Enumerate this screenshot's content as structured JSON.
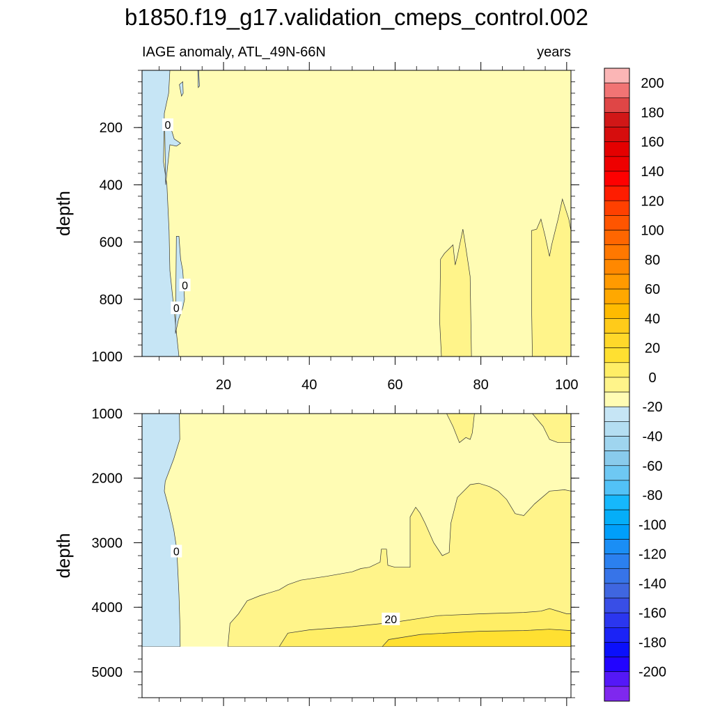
{
  "title": "b1850.f19_g17.validation_cmeps_control.002",
  "chart_data": {
    "type": "heatmap",
    "subtitle_left": "IAGE anomaly, ATL_49N-66N",
    "subtitle_right": "years",
    "xlim": [
      1,
      101
    ],
    "x_ticks": [
      20,
      40,
      60,
      80,
      100
    ],
    "panels": [
      {
        "name": "upper",
        "ylabel": "depth",
        "ylim": [
          0,
          1000
        ],
        "y_ticks": [
          200,
          400,
          600,
          800,
          1000
        ],
        "background": "#fffcb4",
        "regions": [
          {
            "fill": "#c6e5f5",
            "points": [
              [
                1,
                0
              ],
              [
                7.5,
                0
              ],
              [
                7.2,
                80
              ],
              [
                6.2,
                150
              ],
              [
                6,
                320
              ],
              [
                6.8,
                400
              ],
              [
                7.3,
                560
              ],
              [
                7.5,
                700
              ],
              [
                9.6,
                1000
              ],
              [
                1,
                1000
              ]
            ]
          },
          {
            "fill": "#c6e5f5",
            "points": [
              [
                9.7,
                50
              ],
              [
                10.5,
                40
              ],
              [
                10.6,
                80
              ],
              [
                10.2,
                90
              ]
            ]
          },
          {
            "fill": "#c6e5f5",
            "points": [
              [
                14,
                2
              ],
              [
                14.2,
                0
              ],
              [
                14.4,
                55
              ],
              [
                14.1,
                60
              ]
            ]
          },
          {
            "fill": "#c6e5f5",
            "points": [
              [
                6.3,
                200
              ],
              [
                7.5,
                190
              ],
              [
                8.5,
                240
              ],
              [
                10,
                255
              ],
              [
                9,
                265
              ],
              [
                7.5,
                260
              ],
              [
                6.5,
                400
              ]
            ]
          },
          {
            "fill": "#c6e5f5",
            "points": [
              [
                9,
                580
              ],
              [
                9.6,
                580
              ],
              [
                10,
                660
              ],
              [
                10.5,
                700
              ],
              [
                10.9,
                800
              ],
              [
                10.5,
                830
              ],
              [
                9.5,
                870
              ],
              [
                8.8,
                920
              ]
            ]
          },
          {
            "fill": "#fff48a",
            "points": [
              [
                70.8,
                1000
              ],
              [
                70.4,
                880
              ],
              [
                70.6,
                660
              ],
              [
                71.5,
                640
              ],
              [
                73.5,
                610
              ],
              [
                74,
                680
              ],
              [
                74.5,
                650
              ],
              [
                75.8,
                555
              ],
              [
                76.3,
                600
              ],
              [
                77.5,
                720
              ],
              [
                77.8,
                1000
              ]
            ]
          },
          {
            "fill": "#fff48a",
            "points": [
              [
                92,
                1000
              ],
              [
                91.8,
                800
              ],
              [
                91.8,
                560
              ],
              [
                93,
                555
              ],
              [
                94,
                520
              ],
              [
                95,
                580
              ],
              [
                96,
                650
              ],
              [
                96.5,
                610
              ],
              [
                98,
                520
              ],
              [
                99,
                450
              ],
              [
                100.5,
                520
              ],
              [
                101,
                560
              ],
              [
                101,
                1000
              ]
            ]
          }
        ],
        "contour_labels": [
          {
            "text": "0",
            "x": 7,
            "y": 190
          },
          {
            "text": "0",
            "x": 11,
            "y": 750
          },
          {
            "text": "0",
            "x": 9,
            "y": 830
          }
        ]
      },
      {
        "name": "lower",
        "ylabel": "depth",
        "ylim": [
          1000,
          5400
        ],
        "y_ticks": [
          1000,
          2000,
          3000,
          4000,
          5000
        ],
        "background": "#fffcb4",
        "missing_below": 4610,
        "regions": [
          {
            "fill": "#c6e5f5",
            "points": [
              [
                1,
                1000
              ],
              [
                9.7,
                1000
              ],
              [
                9.8,
                1400
              ],
              [
                8.4,
                1700
              ],
              [
                6.4,
                2050
              ],
              [
                6.2,
                2200
              ],
              [
                7.4,
                2500
              ],
              [
                8.4,
                2800
              ],
              [
                9.1,
                3100
              ],
              [
                9.4,
                3500
              ],
              [
                9.6,
                3800
              ],
              [
                9.8,
                4200
              ],
              [
                9.9,
                4610
              ],
              [
                1,
                4610
              ]
            ]
          },
          {
            "fill": "#fff48a",
            "points": [
              [
                69.5,
                1000
              ],
              [
                78.5,
                1000
              ],
              [
                78,
                1300
              ],
              [
                77.5,
                1400
              ],
              [
                76.5,
                1370
              ],
              [
                75,
                1450
              ],
              [
                73.5,
                1200
              ],
              [
                72,
                1000
              ]
            ]
          },
          {
            "fill": "#fff48a",
            "points": [
              [
                92,
                1000
              ],
              [
                94.5,
                1200
              ],
              [
                96,
                1400
              ],
              [
                98,
                1450
              ],
              [
                101,
                1450
              ],
              [
                101,
                1000
              ]
            ]
          },
          {
            "fill": "#fff48a",
            "points": [
              [
                21,
                4610
              ],
              [
                21.5,
                4250
              ],
              [
                23.5,
                4100
              ],
              [
                25.5,
                3900
              ],
              [
                28.5,
                3820
              ],
              [
                33,
                3730
              ],
              [
                35,
                3650
              ],
              [
                38,
                3580
              ],
              [
                44,
                3520
              ],
              [
                50,
                3450
              ],
              [
                52,
                3400
              ],
              [
                54,
                3380
              ],
              [
                56.5,
                3300
              ],
              [
                56.8,
                3100
              ],
              [
                58,
                3100
              ],
              [
                58.3,
                3350
              ],
              [
                60,
                3380
              ],
              [
                63.5,
                3380
              ],
              [
                63.5,
                2600
              ],
              [
                64.8,
                2450
              ],
              [
                65.8,
                2540
              ],
              [
                67,
                2700
              ],
              [
                69,
                3000
              ],
              [
                71,
                3200
              ],
              [
                72.6,
                3150
              ],
              [
                73,
                2700
              ],
              [
                74.5,
                2300
              ],
              [
                77.5,
                2100
              ],
              [
                79.5,
                2080
              ],
              [
                82,
                2130
              ],
              [
                84,
                2200
              ],
              [
                86,
                2330
              ],
              [
                88,
                2550
              ],
              [
                90,
                2580
              ],
              [
                92.5,
                2400
              ],
              [
                96,
                2200
              ],
              [
                99.5,
                2180
              ],
              [
                101,
                2200
              ],
              [
                101,
                4610
              ]
            ]
          },
          {
            "fill": "#ffee66",
            "points": [
              [
                33,
                4610
              ],
              [
                35,
                4400
              ],
              [
                40,
                4350
              ],
              [
                50,
                4300
              ],
              [
                60,
                4230
              ],
              [
                70,
                4130
              ],
              [
                80,
                4100
              ],
              [
                90,
                4080
              ],
              [
                94,
                4060
              ],
              [
                96,
                4020
              ],
              [
                100,
                4100
              ],
              [
                101,
                4100
              ],
              [
                101,
                4610
              ]
            ]
          },
          {
            "fill": "#ffe031",
            "points": [
              [
                57,
                4610
              ],
              [
                58.5,
                4500
              ],
              [
                66,
                4420
              ],
              [
                80,
                4370
              ],
              [
                90,
                4360
              ],
              [
                96,
                4340
              ],
              [
                101,
                4360
              ],
              [
                101,
                4610
              ]
            ]
          }
        ],
        "contour_labels": [
          {
            "text": "0",
            "x": 9,
            "y": 3130
          },
          {
            "text": "20",
            "x": 59,
            "y": 4180
          }
        ]
      }
    ],
    "colorbar": {
      "label_values": [
        200,
        180,
        160,
        140,
        120,
        100,
        80,
        60,
        40,
        20,
        0,
        -20,
        -40,
        -60,
        -80,
        -100,
        -120,
        -140,
        -160,
        -180,
        -200
      ],
      "colors": [
        "#fbb6b6",
        "#f17474",
        "#df4646",
        "#d11717",
        "#d60d0d",
        "#e40000",
        "#ee0000",
        "#fe0000",
        "#fe1d00",
        "#ff4000",
        "#ff5500",
        "#ff6600",
        "#ff7800",
        "#ff8800",
        "#ff9a00",
        "#ffa800",
        "#ffbb00",
        "#ffcb1a",
        "#ffd82a",
        "#ffe031",
        "#ffee66",
        "#fff48a",
        "#fffcb4",
        "#c6e5f5",
        "#b4def2",
        "#9fd5ef",
        "#89cbec",
        "#6ec8f3",
        "#52c2f7",
        "#16b8fc",
        "#05aef8",
        "#009ffa",
        "#1a8ef5",
        "#2b80ef",
        "#3774e8",
        "#3f66e0",
        "#394ee6",
        "#2b36ef",
        "#1b23f6",
        "#0b10fb",
        "#2204ff",
        "#5418f7",
        "#7f28ee"
      ]
    }
  }
}
